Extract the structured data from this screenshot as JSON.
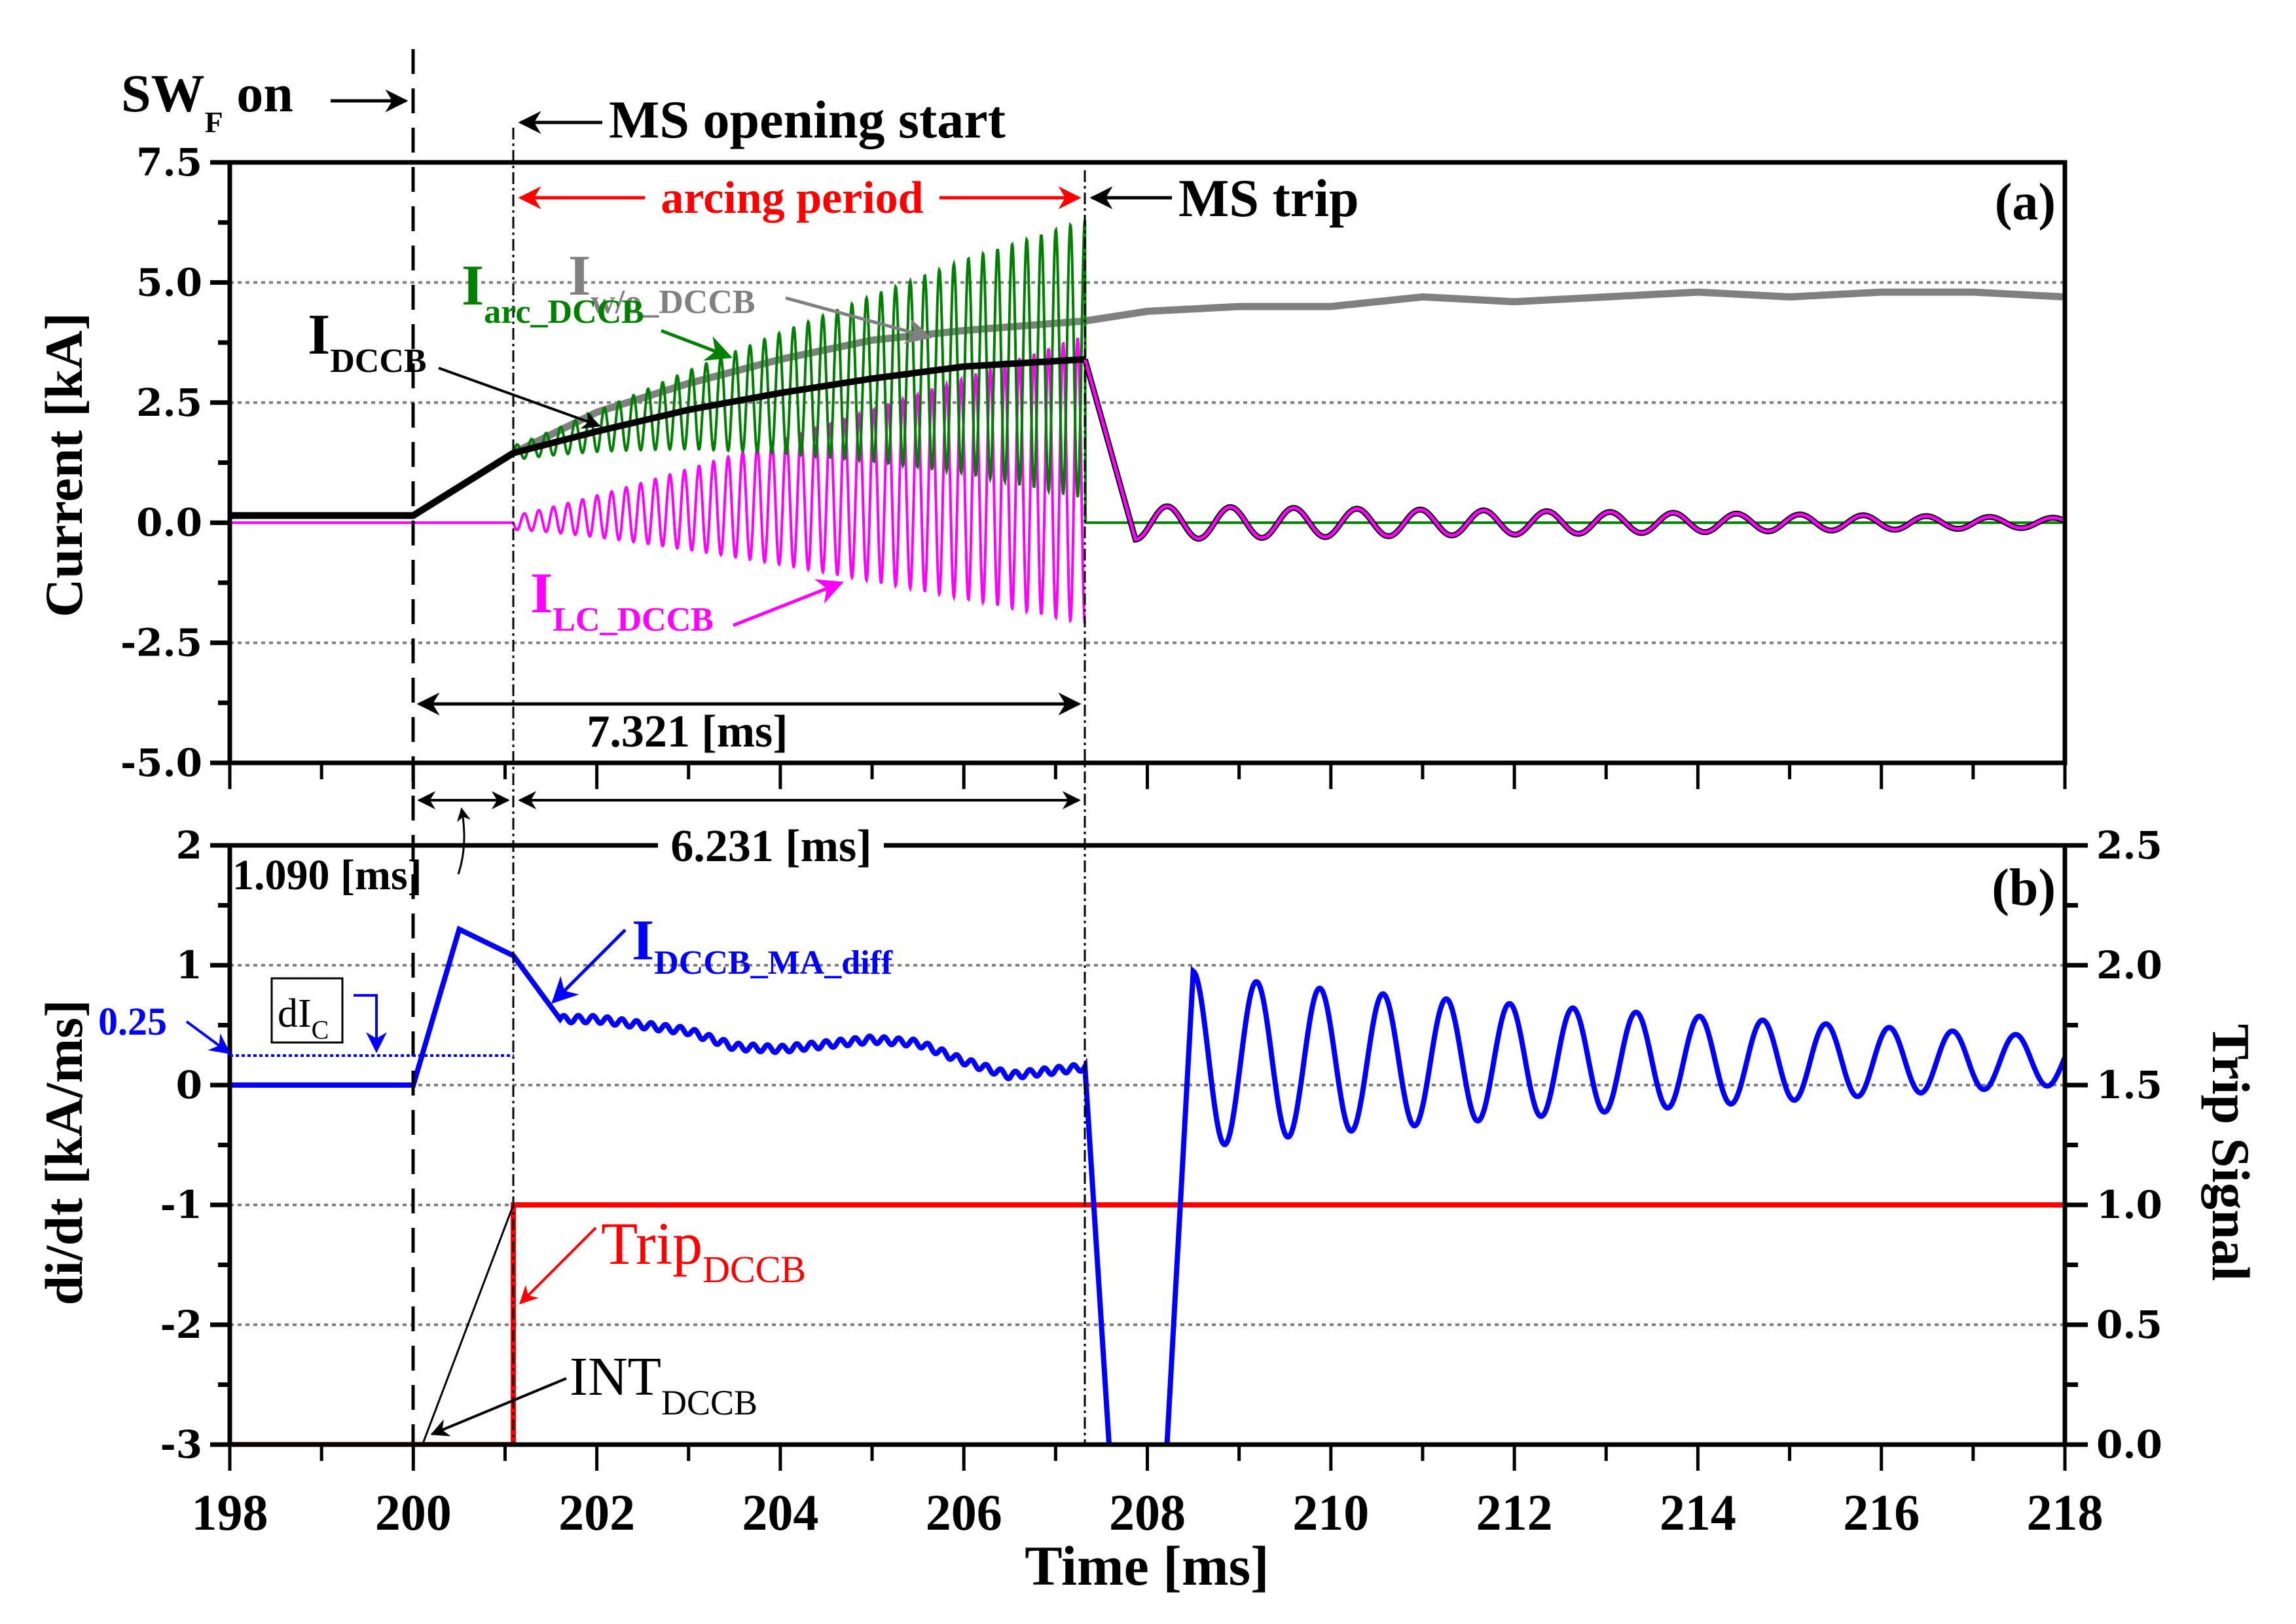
{
  "chart_data": [
    {
      "panel": "(a)",
      "type": "line",
      "ylabel": "Current [kA]",
      "xlabel": "Time [ms]",
      "xlim": [
        198,
        218
      ],
      "ylim": [
        -5.0,
        7.5
      ],
      "yticks": [
        "7.5",
        "5.0",
        "2.5",
        "0.0",
        "-2.5",
        "-5.0"
      ],
      "grid": true,
      "series": [
        {
          "name": "I_w/o_DCCB",
          "label_main": "I",
          "label_sub": "w/o_DCCB",
          "color": "#808080",
          "x": [
            198,
            200,
            201.09,
            202,
            203,
            204,
            205,
            206,
            207.32,
            208,
            209,
            210,
            211,
            212,
            213,
            214,
            215,
            216,
            217,
            218
          ],
          "y": [
            0.15,
            0.15,
            1.45,
            2.3,
            2.9,
            3.4,
            3.8,
            4.0,
            4.2,
            4.4,
            4.5,
            4.5,
            4.7,
            4.6,
            4.7,
            4.8,
            4.7,
            4.8,
            4.8,
            4.7
          ]
        },
        {
          "name": "I_arc_DCCB",
          "label_main": "I",
          "label_sub": "arc_DCCB",
          "color": "#008000",
          "envelope_note": "oscillating between lower and upper envelope during arcing",
          "x": [
            198,
            200,
            201.09,
            207.32,
            207.33,
            218
          ],
          "y_center": [
            0.15,
            0.15,
            1.45,
            3.4,
            0.0,
            0.0
          ],
          "osc_amplitude_start": 0.15,
          "osc_amplitude_end": 2.9,
          "peak_max": 6.3
        },
        {
          "name": "I_DCCB",
          "label_main": "I",
          "label_sub": "DCCB",
          "color": "#000000",
          "x": [
            198,
            200,
            201.09,
            202,
            203,
            204,
            205,
            206,
            207.32,
            208.0,
            218
          ],
          "y": [
            0.15,
            0.15,
            1.45,
            1.9,
            2.35,
            2.7,
            3.0,
            3.25,
            3.4,
            -0.35,
            0.0
          ]
        },
        {
          "name": "I_LC_DCCB",
          "label_main": "I",
          "label_sub": "LC_DCCB",
          "color": "#ff00ff",
          "x": [
            198,
            201.09,
            207.32,
            218
          ],
          "y_center": [
            0.0,
            0.0,
            0.0,
            0.0
          ],
          "osc_amplitude_start": 0.15,
          "osc_amplitude_end": 3.0,
          "post_trip_osc_amplitude_start": 0.35,
          "post_trip_osc_amplitude_end": 0.1
        }
      ],
      "annotations": {
        "swf_on": {
          "main": "SW",
          "sub": "F",
          "rest": " on"
        },
        "ms_opening_start": "MS opening start",
        "arcing_period": "arcing period",
        "ms_trip": "MS trip",
        "duration_total": "7.321 [ms]",
        "panel_label": "(a)"
      },
      "event_times": {
        "swf_on": 200.0,
        "ms_opening_start": 201.09,
        "ms_trip": 207.321
      }
    },
    {
      "panel": "(b)",
      "type": "line",
      "ylabel": "di/dt [kA/ms]",
      "ylabel_right": "Trip Signal",
      "xlabel": "Time [ms]",
      "xlim": [
        198,
        218
      ],
      "xticks": [
        "198",
        "200",
        "202",
        "204",
        "206",
        "208",
        "210",
        "212",
        "214",
        "216",
        "218"
      ],
      "ylim": [
        -3,
        2
      ],
      "yticks": [
        "2",
        "1",
        "0",
        "-1",
        "-2",
        "-3"
      ],
      "ylim_right": [
        0.0,
        2.5
      ],
      "yticks_right": [
        "2.5",
        "2.0",
        "1.5",
        "1.0",
        "0.5",
        "0.0"
      ],
      "grid": true,
      "series": [
        {
          "name": "I_DCCB_MA_diff",
          "label_main": "I",
          "label_sub": "DCCB_MA_diff",
          "color": "#0000ff",
          "x": [
            198,
            200,
            200.5,
            201.09,
            201.6,
            202,
            203,
            203.5,
            204,
            205,
            205.5,
            206,
            206.5,
            207.32,
            207.6,
            208.2,
            208.5,
            218
          ],
          "y": [
            0,
            0,
            1.3,
            1.08,
            0.55,
            0.55,
            0.45,
            0.32,
            0.3,
            0.38,
            0.35,
            0.2,
            0.08,
            0.15,
            -3.0,
            -3.0,
            0.95,
            0.2
          ]
        },
        {
          "name": "Trip_DCCB",
          "label_main": "Trip",
          "label_sub": "DCCB",
          "color": "#ff0000",
          "axis": "right",
          "x": [
            198,
            201.09,
            201.09,
            218
          ],
          "y": [
            0,
            0,
            1,
            1
          ]
        },
        {
          "name": "INT_DCCB",
          "label_main": "INT",
          "label_sub": "DCCB",
          "color": "#000000",
          "axis": "right",
          "x": [
            198,
            200.1,
            201.09
          ],
          "y": [
            0,
            0,
            1
          ]
        }
      ],
      "threshold": {
        "name": "dI_C",
        "label_main": "dI",
        "label_sub": "C",
        "value_label": "0.25",
        "value": 0.25,
        "color": "#0000ff"
      },
      "annotations": {
        "duration_detect": "1.090 [ms]",
        "duration_arcing": "6.231 [ms]",
        "panel_label": "(b)"
      }
    }
  ]
}
